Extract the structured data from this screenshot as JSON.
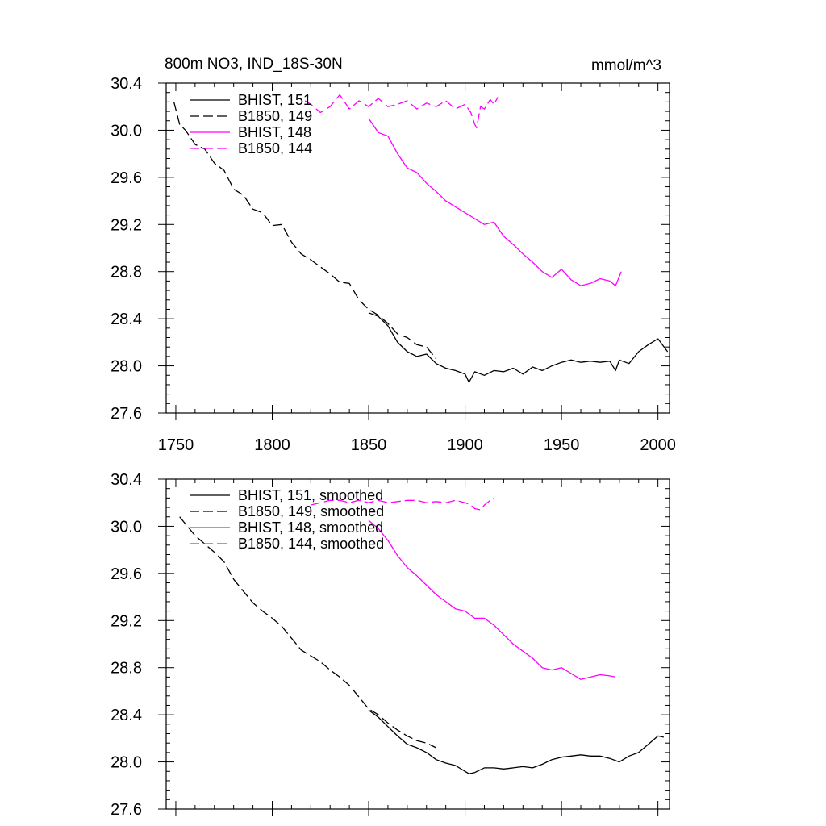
{
  "figure": {
    "title_left": "800m NO3, IND_18S-30N",
    "title_right": "mmol/m^3"
  },
  "colors": {
    "black": "#000000",
    "magenta": "#ff00ff"
  },
  "chart_data": [
    {
      "type": "line",
      "xlim": [
        1745,
        2006
      ],
      "ylim": [
        27.6,
        30.4
      ],
      "x_ticks": [
        1750,
        1800,
        1850,
        1900,
        1950,
        2000
      ],
      "x_tick_labels": [
        "1750",
        "1800",
        "1850",
        "1900",
        "1950",
        "2000"
      ],
      "y_ticks": [
        27.6,
        28.0,
        28.4,
        28.8,
        29.2,
        29.6,
        30.0,
        30.4
      ],
      "y_tick_labels": [
        "27.6",
        "28.0",
        "28.4",
        "28.8",
        "29.2",
        "29.6",
        "30.0",
        "30.4"
      ],
      "legend_position": "top-left",
      "grid": false,
      "series": [
        {
          "name": "BHIST, 151",
          "color": "#000000",
          "dash": "solid",
          "x": [
            1850,
            1855,
            1860,
            1865,
            1870,
            1875,
            1880,
            1885,
            1890,
            1895,
            1900,
            1902,
            1905,
            1910,
            1915,
            1920,
            1925,
            1930,
            1935,
            1940,
            1945,
            1950,
            1955,
            1960,
            1965,
            1970,
            1975,
            1978,
            1980,
            1985,
            1990,
            1995,
            2000,
            2005
          ],
          "y": [
            28.45,
            28.42,
            28.34,
            28.2,
            28.12,
            28.08,
            28.1,
            28.02,
            27.98,
            27.96,
            27.93,
            27.86,
            27.95,
            27.92,
            27.96,
            27.95,
            27.98,
            27.93,
            27.99,
            27.96,
            28.0,
            28.03,
            28.05,
            28.03,
            28.04,
            28.03,
            28.04,
            27.96,
            28.05,
            28.02,
            28.12,
            28.18,
            28.23,
            28.12
          ]
        },
        {
          "name": "B1850, 149",
          "color": "#000000",
          "dash": "dashed",
          "x": [
            1749,
            1752,
            1755,
            1760,
            1765,
            1770,
            1775,
            1780,
            1785,
            1790,
            1795,
            1800,
            1805,
            1810,
            1815,
            1820,
            1825,
            1830,
            1835,
            1840,
            1845,
            1850,
            1855,
            1860,
            1865,
            1870,
            1875,
            1880,
            1885
          ],
          "y": [
            30.24,
            30.05,
            30.0,
            29.88,
            29.84,
            29.72,
            29.66,
            29.5,
            29.45,
            29.33,
            29.3,
            29.19,
            29.2,
            29.05,
            28.95,
            28.9,
            28.84,
            28.78,
            28.71,
            28.7,
            28.56,
            28.48,
            28.43,
            28.36,
            28.27,
            28.24,
            28.18,
            28.16,
            28.06
          ]
        },
        {
          "name": "BHIST, 148",
          "color": "#ff00ff",
          "dash": "solid",
          "x": [
            1850,
            1855,
            1860,
            1865,
            1870,
            1875,
            1880,
            1885,
            1890,
            1895,
            1900,
            1905,
            1910,
            1915,
            1920,
            1925,
            1930,
            1935,
            1940,
            1945,
            1950,
            1955,
            1960,
            1965,
            1970,
            1975,
            1978,
            1981
          ],
          "y": [
            30.1,
            29.98,
            29.95,
            29.8,
            29.68,
            29.64,
            29.55,
            29.48,
            29.4,
            29.35,
            29.3,
            29.25,
            29.2,
            29.22,
            29.1,
            29.03,
            28.95,
            28.88,
            28.8,
            28.75,
            28.82,
            28.73,
            28.68,
            28.7,
            28.74,
            28.72,
            28.68,
            28.8
          ]
        },
        {
          "name": "B1850, 144",
          "color": "#ff00ff",
          "dash": "dashed",
          "x": [
            1817,
            1820,
            1825,
            1830,
            1835,
            1840,
            1845,
            1850,
            1855,
            1860,
            1865,
            1870,
            1875,
            1880,
            1885,
            1890,
            1895,
            1900,
            1903,
            1905,
            1906,
            1908,
            1910,
            1913,
            1915,
            1917
          ],
          "y": [
            30.25,
            30.22,
            30.15,
            30.2,
            30.3,
            30.18,
            30.25,
            30.2,
            30.27,
            30.2,
            30.22,
            30.25,
            30.18,
            30.23,
            30.2,
            30.25,
            30.18,
            30.22,
            30.15,
            30.05,
            30.02,
            30.2,
            30.18,
            30.26,
            30.22,
            30.28
          ]
        }
      ]
    },
    {
      "type": "line",
      "xlim": [
        1745,
        2006
      ],
      "ylim": [
        27.6,
        30.4
      ],
      "x_ticks": [
        1750,
        1800,
        1850,
        1900,
        1950,
        2000
      ],
      "y_ticks": [
        27.6,
        28.0,
        28.4,
        28.8,
        29.2,
        29.6,
        30.0,
        30.4
      ],
      "y_tick_labels": [
        "27.6",
        "28.0",
        "28.4",
        "28.8",
        "29.2",
        "29.6",
        "30.0",
        "30.4"
      ],
      "legend_position": "top-left",
      "grid": false,
      "series": [
        {
          "name": "BHIST, 151, smoothed",
          "color": "#000000",
          "dash": "solid",
          "x": [
            1850,
            1855,
            1860,
            1865,
            1870,
            1875,
            1880,
            1885,
            1890,
            1895,
            1900,
            1902,
            1905,
            1910,
            1915,
            1920,
            1925,
            1930,
            1935,
            1940,
            1945,
            1950,
            1955,
            1960,
            1965,
            1970,
            1975,
            1980,
            1985,
            1990,
            1995,
            2000,
            2003
          ],
          "y": [
            28.44,
            28.38,
            28.3,
            28.22,
            28.15,
            28.12,
            28.08,
            28.02,
            27.99,
            27.97,
            27.92,
            27.9,
            27.91,
            27.95,
            27.95,
            27.94,
            27.95,
            27.96,
            27.95,
            27.98,
            28.02,
            28.04,
            28.05,
            28.06,
            28.05,
            28.05,
            28.03,
            28.0,
            28.05,
            28.08,
            28.15,
            28.22,
            28.21
          ]
        },
        {
          "name": "B1850, 149, smoothed",
          "color": "#000000",
          "dash": "dashed",
          "x": [
            1752,
            1755,
            1760,
            1765,
            1770,
            1775,
            1780,
            1785,
            1790,
            1795,
            1800,
            1805,
            1810,
            1815,
            1820,
            1825,
            1830,
            1835,
            1840,
            1845,
            1850,
            1855,
            1860,
            1865,
            1870,
            1875,
            1880,
            1885
          ],
          "y": [
            30.08,
            30.02,
            29.92,
            29.85,
            29.78,
            29.7,
            29.55,
            29.45,
            29.35,
            29.28,
            29.22,
            29.15,
            29.05,
            28.95,
            28.9,
            28.85,
            28.78,
            28.72,
            28.65,
            28.55,
            28.45,
            28.4,
            28.33,
            28.27,
            28.22,
            28.18,
            28.16,
            28.12
          ]
        },
        {
          "name": "BHIST, 148, smoothed",
          "color": "#ff00ff",
          "dash": "solid",
          "x": [
            1850,
            1855,
            1860,
            1865,
            1870,
            1875,
            1880,
            1885,
            1890,
            1895,
            1900,
            1905,
            1910,
            1915,
            1920,
            1925,
            1930,
            1935,
            1940,
            1945,
            1950,
            1955,
            1960,
            1965,
            1970,
            1975,
            1978
          ],
          "y": [
            30.05,
            29.98,
            29.88,
            29.75,
            29.65,
            29.58,
            29.5,
            29.42,
            29.36,
            29.3,
            29.28,
            29.22,
            29.22,
            29.16,
            29.08,
            29.0,
            28.94,
            28.88,
            28.8,
            28.78,
            28.8,
            28.75,
            28.7,
            28.72,
            28.74,
            28.73,
            28.72
          ]
        },
        {
          "name": "B1850, 144, smoothed",
          "color": "#ff00ff",
          "dash": "dashed",
          "x": [
            1820,
            1825,
            1830,
            1835,
            1840,
            1845,
            1850,
            1855,
            1860,
            1865,
            1870,
            1875,
            1880,
            1885,
            1890,
            1895,
            1900,
            1903,
            1905,
            1908,
            1910,
            1913,
            1915
          ],
          "y": [
            30.18,
            30.2,
            30.22,
            30.22,
            30.2,
            30.22,
            30.2,
            30.22,
            30.2,
            30.21,
            30.22,
            30.22,
            30.2,
            30.21,
            30.2,
            30.22,
            30.2,
            30.18,
            30.15,
            30.14,
            30.18,
            30.22,
            30.24
          ]
        }
      ]
    }
  ]
}
